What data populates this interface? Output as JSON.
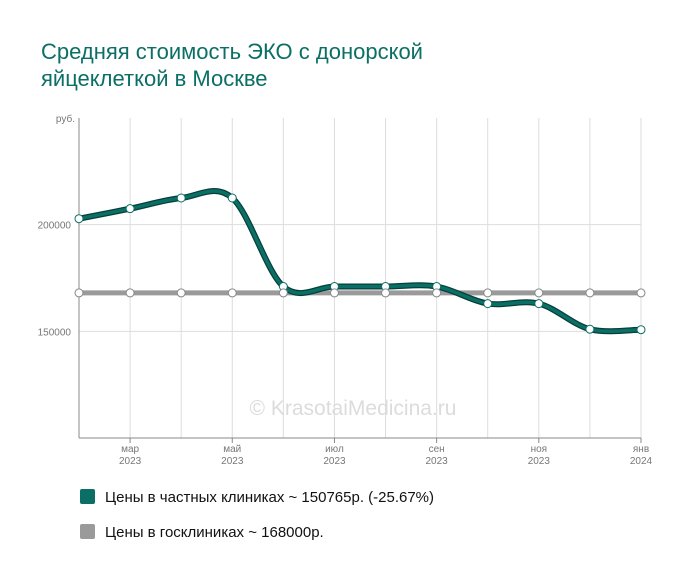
{
  "chart_data": {
    "type": "line",
    "title_lines": [
      "Средняя стоимость ЭКО с донорской",
      "яйцеклеткой в Москве"
    ],
    "y_unit": "руб.",
    "ylim": [
      100000,
      250000
    ],
    "y_ticks": [
      {
        "value": 200000,
        "label": "200000"
      },
      {
        "value": 150000,
        "label": "150000"
      }
    ],
    "x_ticks": [
      {
        "index": 1,
        "month": "мар",
        "year": "2023"
      },
      {
        "index": 3,
        "month": "май",
        "year": "2023"
      },
      {
        "index": 5,
        "month": "июл",
        "year": "2023"
      },
      {
        "index": 7,
        "month": "сен",
        "year": "2023"
      },
      {
        "index": 9,
        "month": "ноя",
        "year": "2023"
      },
      {
        "index": 11,
        "month": "янв",
        "year": "2024"
      }
    ],
    "x_count": 12,
    "grid": true,
    "series": [
      {
        "name": "Цены в частных клиниках",
        "legend_label": "Цены в частных клиниках ~ 150765р. (-25.67%)",
        "color": "#0b6f66",
        "values": [
          202800,
          207500,
          212500,
          212500,
          171000,
          171000,
          171000,
          171000,
          163000,
          163000,
          151000,
          150765
        ]
      },
      {
        "name": "Цены в госклиниках",
        "legend_label": "Цены в госклиниках ~ 168000р.",
        "color": "#9a9a9a",
        "values": [
          168000,
          168000,
          168000,
          168000,
          168000,
          168000,
          168000,
          168000,
          168000,
          168000,
          168000,
          168000
        ]
      }
    ],
    "watermark": "© KrasotaiMedicina.ru"
  }
}
